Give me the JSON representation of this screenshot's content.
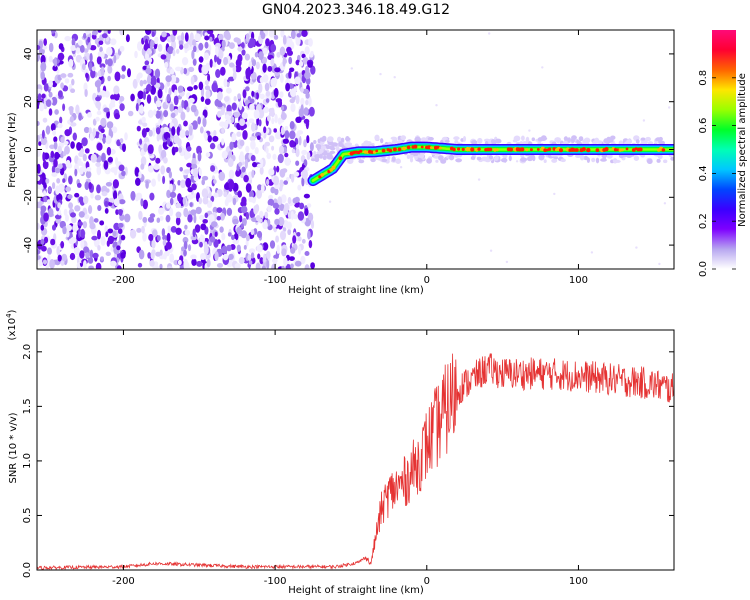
{
  "figure": {
    "title": "GN04.2023.346.18.49.G12"
  },
  "chart_data": [
    {
      "type": "heatmap",
      "xlabel": "Height of straight line (km)",
      "ylabel": "Frequency (Hz)",
      "xlim": [
        -257,
        163
      ],
      "ylim": [
        -50,
        50
      ],
      "xticks": [
        -200,
        -100,
        0,
        100
      ],
      "yticks": [
        -40,
        -20,
        0,
        20,
        40
      ],
      "colorbar": {
        "label": "Normalized spectral amplitude",
        "range": [
          0,
          1
        ],
        "ticks": [
          "0.0",
          "0.2",
          "0.4",
          "0.6",
          "0.8"
        ],
        "colormap": [
          "#ffffff",
          "#b7a6f0",
          "#7e00ff",
          "#3a00ff",
          "#0046ff",
          "#00c8ff",
          "#00ffb4",
          "#00ff28",
          "#9bff00",
          "#ffe600",
          "#ff6400",
          "#ff0032",
          "#ff0a78"
        ]
      },
      "ridge": {
        "description_points_x": [
          -75,
          -62,
          -55,
          -45,
          -35,
          -20,
          -10,
          0,
          20,
          60,
          100,
          163
        ],
        "description_points_y": [
          -13,
          -8,
          -2,
          -1,
          -1,
          0,
          1,
          1,
          0,
          0,
          0,
          0
        ]
      }
    },
    {
      "type": "line",
      "xlabel": "Height of straight line (km)",
      "ylabel": "SNR (10 * v/v)",
      "y_multiplier": "(x10",
      "y_multiplier_exp": "4",
      "xlim": [
        -257,
        163
      ],
      "ylim": [
        0,
        2.2
      ],
      "xticks": [
        -200,
        -100,
        0,
        100
      ],
      "yticks": [
        "0.0",
        "0.5",
        "1.0",
        "1.5",
        "2.0"
      ],
      "line_color": "#e53333",
      "envelope": {
        "x": [
          -257,
          -200,
          -185,
          -180,
          -120,
          -60,
          -45,
          -40,
          -37,
          -33,
          -30,
          -25,
          -20,
          -15,
          -10,
          -5,
          0,
          10,
          20,
          30,
          40,
          50,
          60,
          80,
          100,
          120,
          140,
          150,
          163
        ],
        "y": [
          0.02,
          0.03,
          0.05,
          0.06,
          0.03,
          0.03,
          0.07,
          0.12,
          0.05,
          0.35,
          0.55,
          0.7,
          0.75,
          0.8,
          0.9,
          1.0,
          1.15,
          1.4,
          1.65,
          1.75,
          1.85,
          1.8,
          1.8,
          1.8,
          1.78,
          1.75,
          1.72,
          1.7,
          1.65
        ]
      }
    }
  ]
}
